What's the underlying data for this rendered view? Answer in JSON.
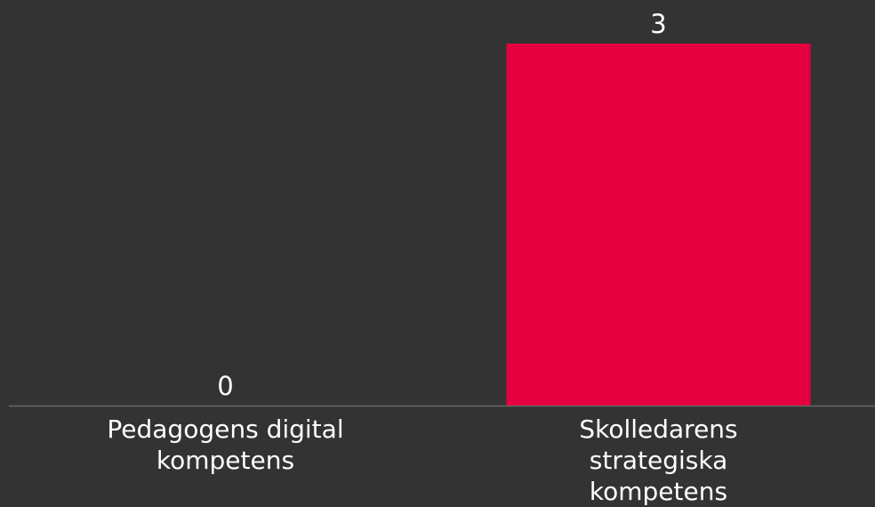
{
  "chart_data": {
    "type": "bar",
    "categories": [
      [
        "Pedagogens digital",
        "kompetens"
      ],
      [
        "Skolledarens",
        "strategiska",
        "kompetens"
      ]
    ],
    "values": [
      0,
      3
    ],
    "value_labels": [
      "0",
      "3"
    ],
    "ylim": [
      0,
      3
    ],
    "grid": false,
    "legend": "none",
    "colors": {
      "background": "#333333",
      "bar": "#e4003f",
      "axis": "#666666",
      "text": "#ffffff"
    }
  }
}
